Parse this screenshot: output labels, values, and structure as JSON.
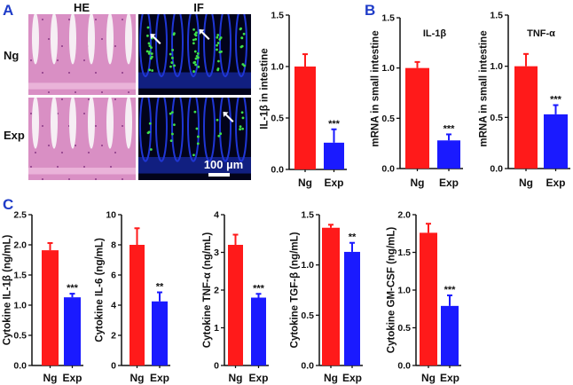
{
  "panel_labels": {
    "a": "A",
    "b": "B",
    "c": "C"
  },
  "micrographs": {
    "columns": [
      "HE",
      "IF"
    ],
    "rows": [
      "Ng",
      "Exp"
    ],
    "scale_bar": "100 µm",
    "colors": {
      "he_bg": "#d98fc4",
      "he_lumen": "#f6eef4",
      "if_bg": "#02031a",
      "if_nuclei": "#1f36d6",
      "if_signal": "#3ee04a"
    }
  },
  "colors": {
    "Ng": "#ff1a1a",
    "Exp": "#1a1aff",
    "panel_label": "#1f3cc8"
  },
  "chart_data": [
    {
      "id": "a",
      "type": "bar",
      "categories": [
        "Ng",
        "Exp"
      ],
      "values": [
        1.0,
        0.26
      ],
      "errors": [
        0.12,
        0.13
      ],
      "significance": [
        "",
        "***"
      ],
      "ylabel": "IL-1β in intestine",
      "inner_label": "",
      "ylim": [
        0,
        1.5
      ],
      "yticks": [
        "0.0",
        "0.5",
        "1.0",
        "1.5"
      ]
    },
    {
      "id": "b1",
      "type": "bar",
      "categories": [
        "Ng",
        "Exp"
      ],
      "values": [
        1.0,
        0.28
      ],
      "errors": [
        0.06,
        0.06
      ],
      "significance": [
        "",
        "***"
      ],
      "ylabel": "mRNA in small intestine",
      "inner_label": "IL-1β",
      "ylim": [
        0,
        1.5
      ],
      "yticks": [
        "0.0",
        "0.5",
        "1.0",
        "1.5"
      ]
    },
    {
      "id": "b2",
      "type": "bar",
      "categories": [
        "Ng",
        "Exp"
      ],
      "values": [
        1.0,
        0.53
      ],
      "errors": [
        0.12,
        0.09
      ],
      "significance": [
        "",
        "***"
      ],
      "ylabel": "mRNA in small intestine",
      "inner_label": "TNF-α",
      "ylim": [
        0,
        1.5
      ],
      "yticks": [
        "0.0",
        "0.5",
        "1.0",
        "1.5"
      ]
    },
    {
      "id": "c1",
      "type": "bar",
      "categories": [
        "Ng",
        "Exp"
      ],
      "values": [
        1.91,
        1.13
      ],
      "errors": [
        0.12,
        0.06
      ],
      "significance": [
        "",
        "***"
      ],
      "ylabel": "Cytokine IL-1β (ng/mL)",
      "inner_label": "",
      "ylim": [
        0,
        2.5
      ],
      "yticks": [
        "0.0",
        "0.5",
        "1.0",
        "1.5",
        "2.0",
        "2.5"
      ]
    },
    {
      "id": "c2",
      "type": "bar",
      "categories": [
        "Ng",
        "Exp"
      ],
      "values": [
        8.0,
        4.25
      ],
      "errors": [
        1.1,
        0.6
      ],
      "significance": [
        "",
        "**"
      ],
      "ylabel": "Cytokine IL-6 (ng/mL)",
      "inner_label": "",
      "ylim": [
        0,
        10
      ],
      "yticks": [
        "0",
        "2",
        "4",
        "6",
        "8",
        "10"
      ]
    },
    {
      "id": "c3",
      "type": "bar",
      "categories": [
        "Ng",
        "Exp"
      ],
      "values": [
        3.2,
        1.8
      ],
      "errors": [
        0.27,
        0.1
      ],
      "significance": [
        "",
        "***"
      ],
      "ylabel": "Cytokine TNF-α (ng/mL)",
      "inner_label": "",
      "ylim": [
        0,
        4
      ],
      "yticks": [
        "0",
        "1",
        "2",
        "3",
        "4"
      ]
    },
    {
      "id": "c4",
      "type": "bar",
      "categories": [
        "Ng",
        "Exp"
      ],
      "values": [
        1.37,
        1.13
      ],
      "errors": [
        0.03,
        0.09
      ],
      "significance": [
        "",
        "**"
      ],
      "ylabel": "Cytokine TGF-β (ng/mL)",
      "inner_label": "",
      "ylim": [
        0,
        1.5
      ],
      "yticks": [
        "0.0",
        "0.5",
        "1.0",
        "1.5"
      ]
    },
    {
      "id": "c5",
      "type": "bar",
      "categories": [
        "Ng",
        "Exp"
      ],
      "values": [
        1.76,
        0.79
      ],
      "errors": [
        0.12,
        0.14
      ],
      "significance": [
        "",
        "***"
      ],
      "ylabel": "Cytokine GM-CSF (ng/mL)",
      "inner_label": "",
      "ylim": [
        0,
        2.0
      ],
      "yticks": [
        "0.0",
        "0.5",
        "1.0",
        "1.5",
        "2.0"
      ]
    }
  ]
}
